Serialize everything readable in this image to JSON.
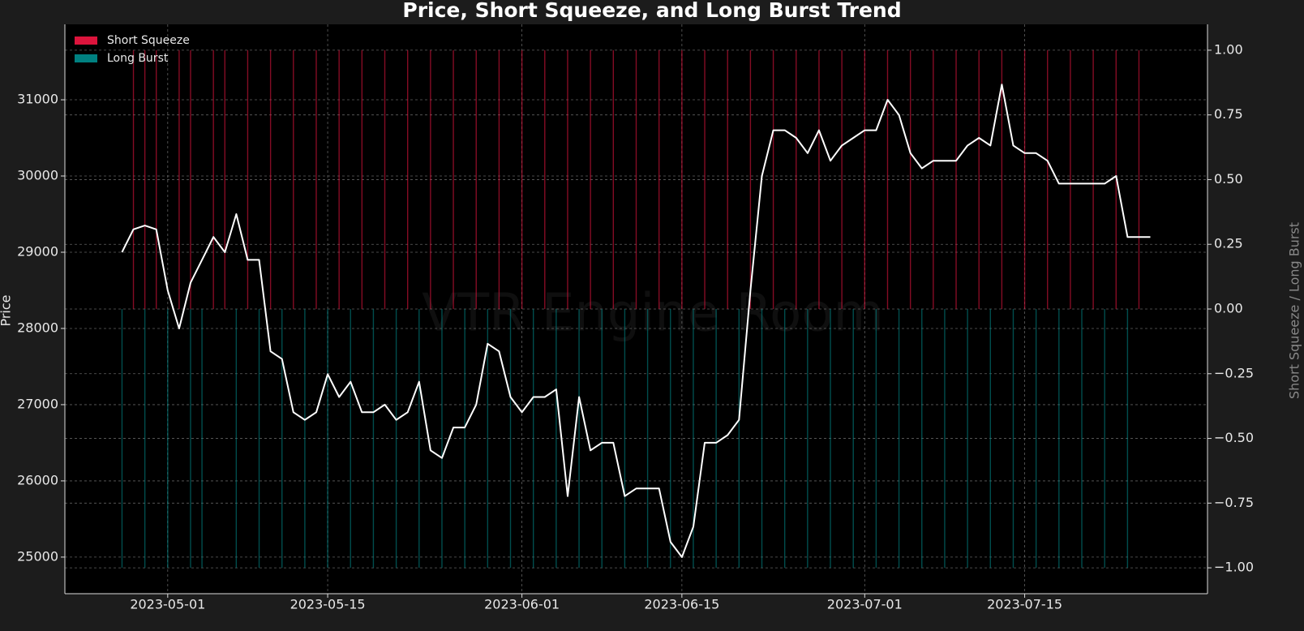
{
  "chart_data": {
    "type": "line",
    "title": "Price, Short Squeeze, and Long Burst Trend",
    "watermark": "VTR Engine Room",
    "y_label": "Price",
    "y2_label": "Short Squeeze / Long Burst",
    "legend": "upper left",
    "grid": true,
    "xlim": [
      "2023-04-22",
      "2023-07-31"
    ],
    "xticks": [
      "2023-05-01",
      "2023-05-15",
      "2023-06-01",
      "2023-06-15",
      "2023-07-01",
      "2023-07-15"
    ],
    "ylim": [
      24520,
      31990
    ],
    "yticks": [
      25000,
      26000,
      27000,
      28000,
      29000,
      30000,
      31000
    ],
    "y2lim": [
      -1.1,
      1.1
    ],
    "y2ticks": [
      {
        "value": -1,
        "label": "−1.00"
      },
      {
        "value": -0.75,
        "label": "−0.75"
      },
      {
        "value": -0.5,
        "label": "−0.50"
      },
      {
        "value": -0.25,
        "label": "−0.25"
      },
      {
        "value": 0,
        "label": "0.00"
      },
      {
        "value": 0.25,
        "label": "0.25"
      },
      {
        "value": 0.5,
        "label": "0.50"
      },
      {
        "value": 0.75,
        "label": "0.75"
      },
      {
        "value": 1,
        "label": "1.00"
      }
    ],
    "series": [
      {
        "type": "line",
        "color": "#ffffff",
        "axis": "y",
        "x": [
          "2023-04-27",
          "2023-04-28",
          "2023-04-29",
          "2023-04-30",
          "2023-05-01",
          "2023-05-02",
          "2023-05-03",
          "2023-05-04",
          "2023-05-05",
          "2023-05-06",
          "2023-05-07",
          "2023-05-08",
          "2023-05-09",
          "2023-05-10",
          "2023-05-11",
          "2023-05-12",
          "2023-05-13",
          "2023-05-14",
          "2023-05-15",
          "2023-05-16",
          "2023-05-17",
          "2023-05-18",
          "2023-05-19",
          "2023-05-20",
          "2023-05-21",
          "2023-05-22",
          "2023-05-23",
          "2023-05-24",
          "2023-05-25",
          "2023-05-26",
          "2023-05-27",
          "2023-05-28",
          "2023-05-29",
          "2023-05-30",
          "2023-05-31",
          "2023-06-01",
          "2023-06-02",
          "2023-06-03",
          "2023-06-04",
          "2023-06-05",
          "2023-06-06",
          "2023-06-07",
          "2023-06-08",
          "2023-06-09",
          "2023-06-10",
          "2023-06-11",
          "2023-06-12",
          "2023-06-13",
          "2023-06-14",
          "2023-06-15",
          "2023-06-16",
          "2023-06-17",
          "2023-06-18",
          "2023-06-19",
          "2023-06-20",
          "2023-06-21",
          "2023-06-22",
          "2023-06-23",
          "2023-06-24",
          "2023-06-25",
          "2023-06-26",
          "2023-06-27",
          "2023-06-28",
          "2023-06-29",
          "2023-06-30",
          "2023-07-01",
          "2023-07-02",
          "2023-07-03",
          "2023-07-04",
          "2023-07-05",
          "2023-07-06",
          "2023-07-07",
          "2023-07-08",
          "2023-07-09",
          "2023-07-10",
          "2023-07-11",
          "2023-07-12",
          "2023-07-13",
          "2023-07-14",
          "2023-07-15",
          "2023-07-16",
          "2023-07-17",
          "2023-07-18",
          "2023-07-19",
          "2023-07-20",
          "2023-07-21",
          "2023-07-22",
          "2023-07-23",
          "2023-07-24",
          "2023-07-25",
          "2023-07-26"
        ],
        "values": [
          29000,
          29300,
          29350,
          29300,
          28500,
          28000,
          28600,
          28900,
          29200,
          29000,
          29500,
          28900,
          28900,
          27700,
          27600,
          26900,
          26800,
          26900,
          27400,
          27100,
          27300,
          26900,
          26900,
          27000,
          26800,
          26900,
          27300,
          26400,
          26300,
          26700,
          26700,
          27000,
          27800,
          27700,
          27100,
          26900,
          27100,
          27100,
          27200,
          25800,
          27100,
          26400,
          26500,
          26500,
          25800,
          25900,
          25900,
          25900,
          25200,
          25000,
          25400,
          26500,
          26500,
          26600,
          26800,
          28500,
          30000,
          30600,
          30600,
          30500,
          30300,
          30600,
          30200,
          30400,
          30500,
          30600,
          30600,
          31000,
          30800,
          30300,
          30100,
          30200,
          30200,
          30200,
          30400,
          30500,
          30400,
          31200,
          30400,
          30300,
          30300,
          30200,
          29900,
          29900,
          29900,
          29900,
          29900,
          30000,
          29200,
          29200,
          29200
        ]
      },
      {
        "type": "bar",
        "name": "Short Squeeze",
        "color": "#dc143c",
        "axis": "y2",
        "x": [
          "2023-04-28",
          "2023-04-29",
          "2023-04-30",
          "2023-05-02",
          "2023-05-03",
          "2023-05-05",
          "2023-05-06",
          "2023-05-08",
          "2023-05-10",
          "2023-05-12",
          "2023-05-14",
          "2023-05-16",
          "2023-05-18",
          "2023-05-20",
          "2023-05-22",
          "2023-05-24",
          "2023-05-26",
          "2023-05-28",
          "2023-05-30",
          "2023-06-01",
          "2023-06-03",
          "2023-06-05",
          "2023-06-07",
          "2023-06-09",
          "2023-06-11",
          "2023-06-13",
          "2023-06-15",
          "2023-06-17",
          "2023-06-19",
          "2023-06-21",
          "2023-06-23",
          "2023-06-25",
          "2023-06-27",
          "2023-06-29",
          "2023-07-01",
          "2023-07-03",
          "2023-07-05",
          "2023-07-07",
          "2023-07-09",
          "2023-07-11",
          "2023-07-13",
          "2023-07-15",
          "2023-07-17",
          "2023-07-19",
          "2023-07-21",
          "2023-07-23",
          "2023-07-25"
        ],
        "values": [
          1,
          1,
          1,
          1,
          1,
          1,
          1,
          1,
          1,
          1,
          1,
          1,
          1,
          1,
          1,
          1,
          1,
          1,
          1,
          1,
          1,
          1,
          1,
          1,
          1,
          1,
          1,
          1,
          1,
          1,
          1,
          1,
          1,
          1,
          1,
          1,
          1,
          1,
          1,
          1,
          1,
          1,
          1,
          1,
          1,
          1,
          1
        ]
      },
      {
        "type": "bar",
        "name": "Long Burst",
        "color": "#008080",
        "axis": "y2",
        "x": [
          "2023-04-27",
          "2023-04-29",
          "2023-05-01",
          "2023-05-03",
          "2023-05-04",
          "2023-05-07",
          "2023-05-09",
          "2023-05-11",
          "2023-05-13",
          "2023-05-15",
          "2023-05-17",
          "2023-05-19",
          "2023-05-21",
          "2023-05-23",
          "2023-05-25",
          "2023-05-27",
          "2023-05-29",
          "2023-05-31",
          "2023-06-02",
          "2023-06-04",
          "2023-06-06",
          "2023-06-08",
          "2023-06-10",
          "2023-06-12",
          "2023-06-14",
          "2023-06-16",
          "2023-06-18",
          "2023-06-20",
          "2023-06-22",
          "2023-06-24",
          "2023-06-26",
          "2023-06-28",
          "2023-06-30",
          "2023-07-02",
          "2023-07-04",
          "2023-07-06",
          "2023-07-08",
          "2023-07-10",
          "2023-07-12",
          "2023-07-14",
          "2023-07-16",
          "2023-07-18",
          "2023-07-20",
          "2023-07-22",
          "2023-07-24"
        ],
        "values": [
          -1,
          -1,
          -1,
          -1,
          -1,
          -1,
          -1,
          -1,
          -1,
          -1,
          -1,
          -1,
          -1,
          -1,
          -1,
          -1,
          -1,
          -1,
          -1,
          -1,
          -1,
          -1,
          -1,
          -1,
          -1,
          -1,
          -1,
          -1,
          -1,
          -1,
          -1,
          -1,
          -1,
          -1,
          -1,
          -1,
          -1,
          -1,
          -1,
          -1,
          -1,
          -1,
          -1,
          -1,
          -1
        ]
      }
    ]
  }
}
